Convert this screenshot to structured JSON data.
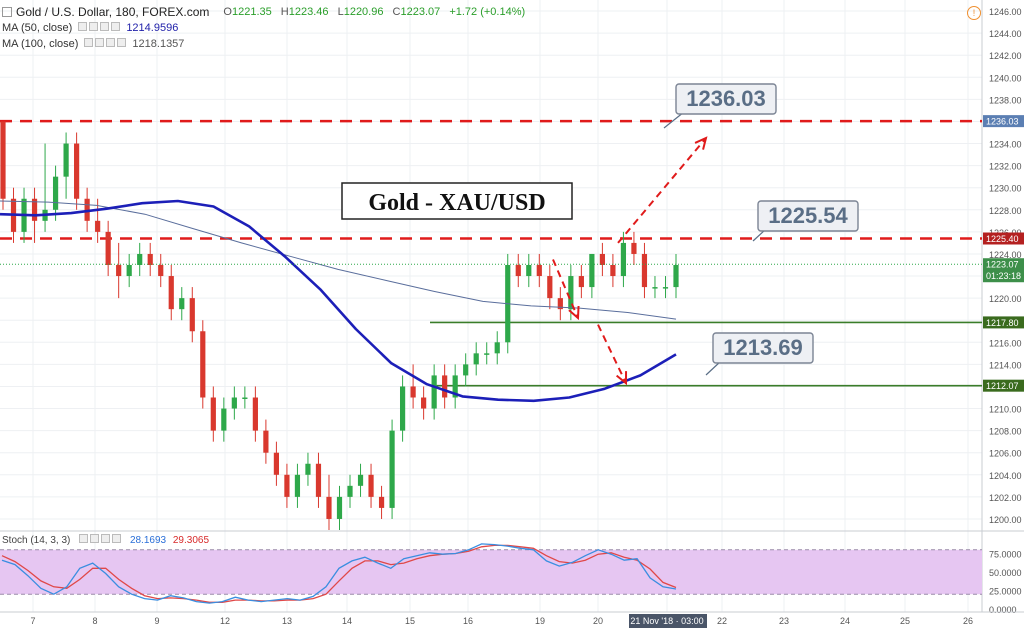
{
  "header": {
    "symbol": "Gold / U.S. Dollar, 180, FOREX.com",
    "open_label": "O",
    "open": "1221.35",
    "high_label": "H",
    "high": "1223.46",
    "low_label": "L",
    "low": "1220.96",
    "close_label": "C",
    "close": "1223.07",
    "change": "+1.72 (+0.14%)",
    "ma50_label": "MA (50, close)",
    "ma50_value": "1214.9596",
    "ma100_label": "MA (100, close)",
    "ma100_value": "1218.1357"
  },
  "stoch": {
    "label": "Stoch (14, 3, 3)",
    "k_value": "28.1693",
    "d_value": "29.3065"
  },
  "colors": {
    "up": "#2ea84a",
    "down": "#d9382e",
    "ma50": "#1c1fb8",
    "ma100": "#5a6e9c",
    "resistance": "#e01b1b",
    "support": "#3a7d2a",
    "stoch_bg": "#e6c6f2",
    "stoch_k": "#3a8ee0",
    "stoch_d": "#e04848",
    "label_box": "#eef0f4",
    "label_text": "#5a6e86"
  },
  "chart_data": {
    "type": "candlestick",
    "title": "Gold - XAU/USD",
    "ylim": [
      1199,
      1247
    ],
    "y_ticks": [
      1200,
      1202,
      1204,
      1206,
      1208,
      1210,
      1212,
      1214,
      1216,
      1218,
      1220,
      1222,
      1224,
      1226,
      1228,
      1230,
      1232,
      1234,
      1236,
      1238,
      1240,
      1242,
      1244,
      1246
    ],
    "y_tick_labels": [
      "1200.00",
      "1202.00",
      "1204.00",
      "1206.00",
      "1208.00",
      "1210.00",
      "1212.00",
      "1214.00",
      "1216.00",
      "1218.00",
      "1220.00",
      "1222.00",
      "1224.00",
      "1226.00",
      "1228.00",
      "1230.00",
      "1232.00",
      "1234.00",
      "1236.00",
      "1238.00",
      "1240.00",
      "1242.00",
      "1244.00",
      "1246.00"
    ],
    "x_labels": [
      "7",
      "8",
      "9",
      "12",
      "13",
      "14",
      "15",
      "16",
      "19",
      "20",
      "21 Nov '18 · 03:00",
      "22",
      "23",
      "24",
      "25",
      "26"
    ],
    "candles": [
      [
        1236,
        1236,
        1228,
        1229
      ],
      [
        1229,
        1230,
        1225,
        1226
      ],
      [
        1226,
        1230,
        1225,
        1229
      ],
      [
        1229,
        1230,
        1225,
        1227
      ],
      [
        1227,
        1234,
        1226,
        1228
      ],
      [
        1228,
        1232,
        1227,
        1231
      ],
      [
        1231,
        1235,
        1229,
        1234
      ],
      [
        1234,
        1235,
        1228,
        1229
      ],
      [
        1229,
        1230,
        1226,
        1227
      ],
      [
        1227,
        1229,
        1225,
        1226
      ],
      [
        1226,
        1227,
        1222,
        1223
      ],
      [
        1223,
        1225,
        1220,
        1222
      ],
      [
        1222,
        1224,
        1221,
        1223
      ],
      [
        1223,
        1225,
        1222,
        1224
      ],
      [
        1224,
        1225,
        1222,
        1223
      ],
      [
        1223,
        1224,
        1221,
        1222
      ],
      [
        1222,
        1223,
        1218,
        1219
      ],
      [
        1219,
        1221,
        1218,
        1220
      ],
      [
        1220,
        1221,
        1216,
        1217
      ],
      [
        1217,
        1218,
        1210,
        1211
      ],
      [
        1211,
        1212,
        1207,
        1208
      ],
      [
        1208,
        1211,
        1207,
        1210
      ],
      [
        1210,
        1212,
        1209,
        1211
      ],
      [
        1211,
        1212,
        1210,
        1211
      ],
      [
        1211,
        1212,
        1207,
        1208
      ],
      [
        1208,
        1209,
        1205,
        1206
      ],
      [
        1206,
        1207,
        1203,
        1204
      ],
      [
        1204,
        1205,
        1201,
        1202
      ],
      [
        1202,
        1205,
        1201,
        1204
      ],
      [
        1204,
        1206,
        1203,
        1205
      ],
      [
        1205,
        1206,
        1201,
        1202
      ],
      [
        1202,
        1204,
        1199,
        1200
      ],
      [
        1200,
        1203,
        1199,
        1202
      ],
      [
        1202,
        1204,
        1201,
        1203
      ],
      [
        1203,
        1205,
        1202,
        1204
      ],
      [
        1204,
        1205,
        1201,
        1202
      ],
      [
        1202,
        1203,
        1200,
        1201
      ],
      [
        1201,
        1209,
        1200,
        1208
      ],
      [
        1208,
        1213,
        1207,
        1212
      ],
      [
        1212,
        1214,
        1210,
        1211
      ],
      [
        1211,
        1212,
        1209,
        1210
      ],
      [
        1210,
        1214,
        1209,
        1213
      ],
      [
        1213,
        1214,
        1210,
        1211
      ],
      [
        1211,
        1214,
        1210,
        1213
      ],
      [
        1213,
        1215,
        1212,
        1214
      ],
      [
        1214,
        1216,
        1213,
        1215
      ],
      [
        1215,
        1216,
        1214,
        1215
      ],
      [
        1215,
        1217,
        1214,
        1216
      ],
      [
        1216,
        1224,
        1215,
        1223
      ],
      [
        1223,
        1224,
        1221,
        1222
      ],
      [
        1222,
        1224,
        1221,
        1223
      ],
      [
        1223,
        1224,
        1221,
        1222
      ],
      [
        1222,
        1223,
        1219,
        1220
      ],
      [
        1220,
        1221,
        1218,
        1219
      ],
      [
        1219,
        1223,
        1218,
        1222
      ],
      [
        1222,
        1223,
        1220,
        1221
      ],
      [
        1221,
        1224,
        1220,
        1224
      ],
      [
        1224,
        1225,
        1222,
        1223
      ],
      [
        1223,
        1224,
        1221,
        1222
      ],
      [
        1222,
        1226,
        1221,
        1225
      ],
      [
        1225,
        1226,
        1223,
        1224
      ],
      [
        1224,
        1225,
        1220,
        1221
      ],
      [
        1221,
        1222,
        1220,
        1221
      ],
      [
        1221,
        1222,
        1220,
        1221
      ],
      [
        1221,
        1224,
        1220,
        1223
      ]
    ],
    "ma50": [
      1227.6,
      1227.5,
      1227.7,
      1228.1,
      1228.6,
      1228.8,
      1228.3,
      1226.5,
      1223.8,
      1220.8,
      1217.2,
      1214.1,
      1212.2,
      1211.1,
      1210.8,
      1210.7,
      1211.0,
      1211.8,
      1213.0,
      1214.9
    ],
    "ma100": [
      1228.8,
      1228.7,
      1228.4,
      1227.6,
      1226.3,
      1225.0,
      1223.8,
      1222.6,
      1221.6,
      1220.6,
      1219.7,
      1219.3,
      1219.1,
      1218.7,
      1218.1
    ],
    "levels": [
      {
        "label": "1236.03",
        "value": 1236.03,
        "kind": "resistance"
      },
      {
        "label": "1225.40",
        "value": 1225.4,
        "kind": "resistance"
      },
      {
        "label": "1217.80",
        "value": 1217.8,
        "kind": "support"
      },
      {
        "label": "1212.07",
        "value": 1212.07,
        "kind": "support"
      }
    ],
    "price_tag": {
      "label": "1223.07",
      "value": 1223.07,
      "countdown": "01:23:18"
    },
    "callouts": [
      "1236.03",
      "1225.54",
      "1213.69"
    ],
    "stoch_ticks": [
      "75.0000",
      "50.0000",
      "25.0000",
      "0.0000"
    ],
    "stoch_k": [
      66,
      60,
      45,
      28,
      20,
      30,
      55,
      62,
      48,
      30,
      20,
      14,
      12,
      18,
      15,
      10,
      8,
      10,
      16,
      12,
      10,
      12,
      14,
      12,
      17,
      30,
      55,
      65,
      70,
      62,
      55,
      68,
      72,
      76,
      74,
      75,
      80,
      88,
      87,
      85,
      82,
      80,
      65,
      58,
      63,
      72,
      80,
      74,
      66,
      68,
      42,
      30,
      27
    ],
    "stoch_d": [
      72,
      64,
      52,
      38,
      30,
      28,
      40,
      55,
      55,
      40,
      28,
      18,
      14,
      15,
      14,
      12,
      9,
      9,
      12,
      12,
      11,
      11,
      12,
      12,
      14,
      20,
      38,
      55,
      65,
      65,
      60,
      62,
      68,
      72,
      74,
      75,
      78,
      84,
      86,
      86,
      84,
      82,
      72,
      64,
      62,
      66,
      74,
      76,
      70,
      66,
      54,
      36,
      29
    ]
  }
}
